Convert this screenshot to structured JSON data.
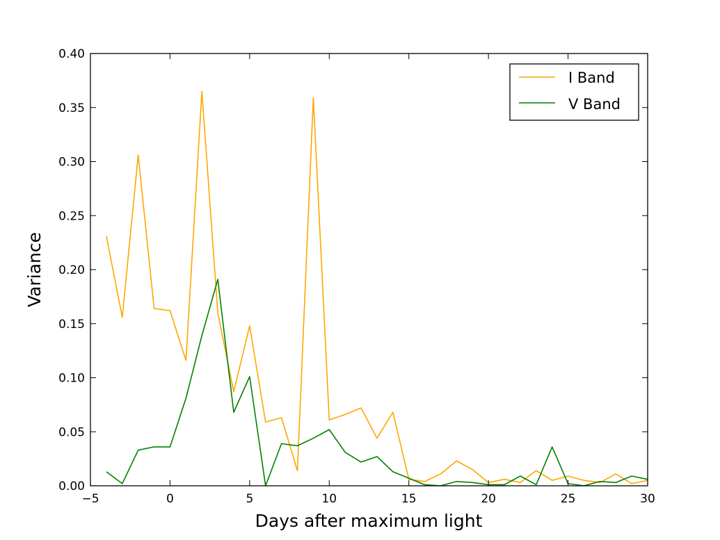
{
  "chart_data": {
    "type": "line",
    "title": "",
    "xlabel": "Days after maximum light",
    "ylabel": "Variance",
    "xlim": [
      -5,
      30
    ],
    "ylim": [
      0,
      0.4
    ],
    "x_ticks": [
      "−5",
      "0",
      "5",
      "10",
      "15",
      "20",
      "25",
      "30"
    ],
    "y_ticks": [
      "0.00",
      "0.05",
      "0.10",
      "0.15",
      "0.20",
      "0.25",
      "0.30",
      "0.35",
      "0.40"
    ],
    "grid": false,
    "legend_position": "top-right",
    "x": [
      -4,
      -3,
      -2,
      -1,
      0,
      1,
      2,
      3,
      4,
      5,
      6,
      7,
      8,
      9,
      10,
      11,
      12,
      13,
      14,
      15,
      16,
      17,
      18,
      19,
      20,
      21,
      22,
      23,
      24,
      25,
      26,
      27,
      28,
      29,
      30
    ],
    "series": [
      {
        "name": "I Band",
        "color": "#ffa500",
        "values": [
          0.231,
          0.156,
          0.306,
          0.164,
          0.162,
          0.116,
          0.365,
          0.16,
          0.087,
          0.148,
          0.059,
          0.063,
          0.014,
          0.359,
          0.061,
          0.066,
          0.072,
          0.044,
          0.068,
          0.006,
          0.004,
          0.011,
          0.023,
          0.015,
          0.003,
          0.006,
          0.003,
          0.014,
          0.005,
          0.009,
          0.005,
          0.003,
          0.011,
          0.002,
          0.005
        ]
      },
      {
        "name": "V Band",
        "color": "#008000",
        "values": [
          0.013,
          0.002,
          0.033,
          0.036,
          0.036,
          0.081,
          0.139,
          0.191,
          0.068,
          0.101,
          0.0,
          0.039,
          0.037,
          0.044,
          0.052,
          0.031,
          0.022,
          0.027,
          0.013,
          0.007,
          0.001,
          0.0,
          0.004,
          0.003,
          0.001,
          0.001,
          0.009,
          0.001,
          0.036,
          0.002,
          0.0,
          0.004,
          0.003,
          0.009,
          0.006
        ]
      }
    ]
  }
}
